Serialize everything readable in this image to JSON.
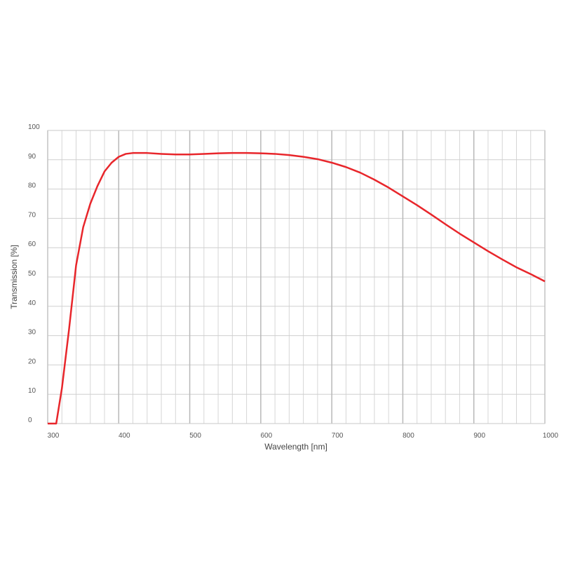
{
  "chart_data": {
    "type": "line",
    "x_label": "Wavelength [nm]",
    "y_label": "Transmission [%]",
    "x": [
      300,
      310,
      312,
      320,
      330,
      340,
      350,
      360,
      370,
      380,
      390,
      400,
      410,
      420,
      440,
      460,
      480,
      500,
      520,
      540,
      560,
      580,
      600,
      620,
      640,
      660,
      680,
      700,
      720,
      740,
      760,
      780,
      800,
      820,
      840,
      860,
      880,
      900,
      920,
      940,
      960,
      980,
      1000
    ],
    "series": [
      {
        "name": "Transmission",
        "color": "#e8262b",
        "values": [
          0,
          0,
          0,
          12,
          32,
          54,
          67,
          75,
          81,
          86,
          89,
          91,
          92,
          92.3,
          92.3,
          92,
          91.8,
          91.8,
          92,
          92.2,
          92.3,
          92.3,
          92.2,
          92,
          91.6,
          91,
          90.2,
          89,
          87.5,
          85.6,
          83.2,
          80.5,
          77.5,
          74.5,
          71.3,
          68,
          64.8,
          61.8,
          58.8,
          56,
          53.3,
          51,
          48.5
        ]
      }
    ],
    "xlim": [
      300,
      1000
    ],
    "ylim": [
      0,
      100
    ],
    "xticks": [
      300,
      400,
      500,
      600,
      700,
      800,
      900,
      1000
    ],
    "x_minor_ticks": [
      320,
      340,
      360,
      380,
      420,
      440,
      460,
      480,
      520,
      540,
      560,
      580,
      620,
      640,
      660,
      680,
      720,
      740,
      760,
      780,
      820,
      840,
      860,
      880,
      920,
      940,
      960,
      980
    ],
    "yticks": [
      0,
      10,
      20,
      30,
      40,
      50,
      60,
      70,
      80,
      90,
      100
    ],
    "grid": true
  }
}
